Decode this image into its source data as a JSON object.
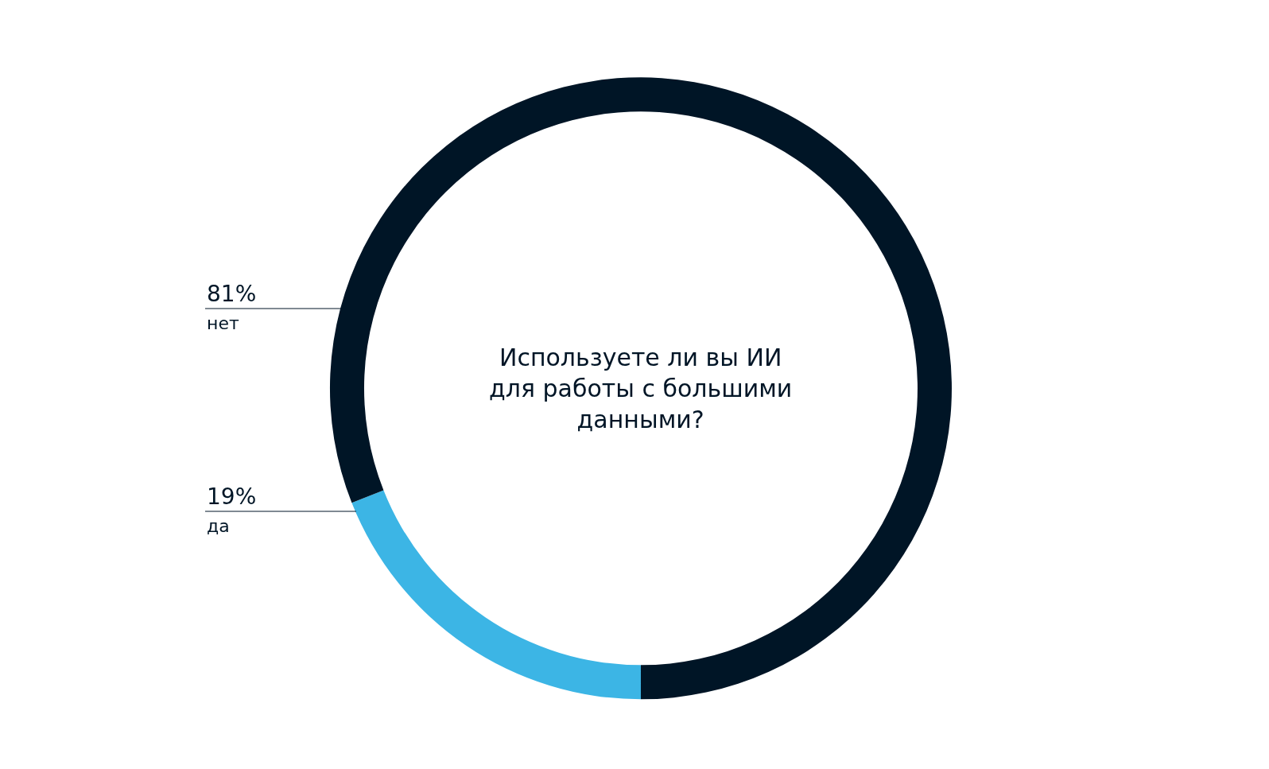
{
  "chart_data": {
    "type": "donut",
    "title": "Используете ли вы ИИ для работы с большими данными?",
    "categories": [
      "да",
      "нет"
    ],
    "values": [
      19,
      81
    ],
    "colors": [
      "#3cb5e5",
      "#001526"
    ],
    "value_labels": [
      "19%",
      "81%"
    ],
    "legend": false
  }
}
